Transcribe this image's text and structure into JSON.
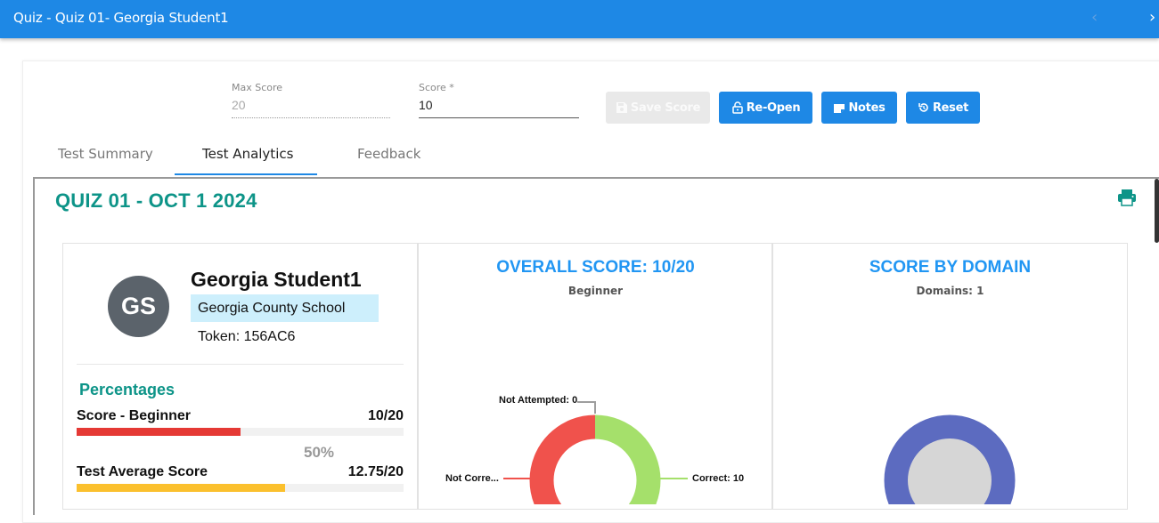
{
  "header": {
    "title": "Quiz - Quiz 01- Georgia Student1",
    "prev": "‹",
    "next": "›"
  },
  "scoring": {
    "max_score_label": "Max Score",
    "max_score_value": "20",
    "score_label": "Score *",
    "score_value": "10"
  },
  "actions": {
    "save_label": "Save Score",
    "reopen_label": "Re-Open",
    "notes_label": "Notes",
    "reset_label": "Reset"
  },
  "tabs": [
    {
      "label": "Test Summary",
      "active": false
    },
    {
      "label": "Test Analytics",
      "active": true
    },
    {
      "label": "Feedback",
      "active": false
    }
  ],
  "quiz_title": "QUIZ 01 - OCT 1 2024",
  "student": {
    "initials": "GS",
    "name": "Georgia Student1",
    "school": "Georgia County School",
    "token": "Token: 156AC6"
  },
  "percentages": {
    "title": "Percentages",
    "items": [
      {
        "label": "Score - Beginner",
        "value": "10/20",
        "fraction": 0.5,
        "color": "#e53935"
      },
      {
        "label": "Test Average Score",
        "value": "12.75/20",
        "fraction": 0.6375,
        "color": "#fbc02d"
      }
    ],
    "pct_text": "50%"
  },
  "overall": {
    "title": "OVERALL SCORE: 10/20",
    "subtitle": "Beginner",
    "chart_data": {
      "type": "pie",
      "categories": [
        "Correct",
        "Not Correct",
        "Not Attempted"
      ],
      "values": [
        10,
        10,
        0
      ],
      "colors": [
        "#a5e06b",
        "#f0524c",
        "#9e9e9e"
      ],
      "labels": [
        "Correct: 10",
        "Not Corre...",
        "Not Attempted: 0"
      ]
    }
  },
  "domain": {
    "title": "SCORE BY DOMAIN",
    "subtitle": "Domains: 1",
    "chart_data": {
      "type": "pie",
      "categories": [
        ""
      ],
      "values": [
        1
      ],
      "colors": [
        "#5c6bc0"
      ]
    }
  },
  "colors": {
    "primary": "#1e88e5",
    "teal": "#0d9488"
  }
}
